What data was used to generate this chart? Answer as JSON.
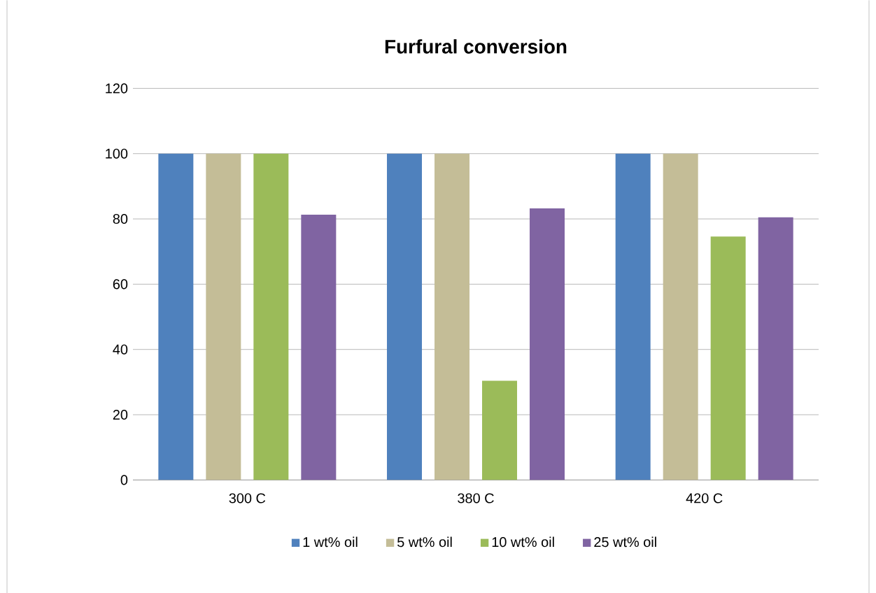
{
  "chart_data": {
    "type": "bar",
    "title": "Furfural conversion",
    "categories": [
      "300 C",
      "380 C",
      "420 C"
    ],
    "series": [
      {
        "name": "1 wt% oil",
        "color": "#4f81bd",
        "values": [
          100,
          100,
          100
        ]
      },
      {
        "name": "5 wt% oil",
        "color": "#c4bd97",
        "values": [
          100,
          100,
          100
        ]
      },
      {
        "name": "10 wt% oil",
        "color": "#9bbb59",
        "values": [
          100,
          30.4,
          74.6
        ]
      },
      {
        "name": "25 wt% oil",
        "color": "#8064a2",
        "values": [
          81.3,
          83.2,
          80.5
        ]
      }
    ],
    "ylim": [
      0,
      120
    ],
    "yticks": [
      0,
      20,
      40,
      60,
      80,
      100,
      120
    ],
    "grid": "y",
    "legend": "bottom"
  }
}
